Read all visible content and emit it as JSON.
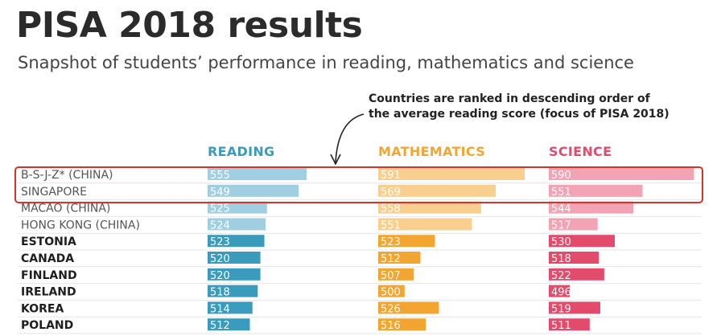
{
  "title": "PISA 2018 results",
  "subtitle": "Snapshot of students’ performance in reading, mathematics and science",
  "annotation": {
    "line1": "Countries are ranked in descending order of",
    "line2": "the average reading score (focus of PISA 2018)"
  },
  "colors": {
    "reading": "#3a9bbd",
    "reading_light": "#9fcfe0",
    "mathematics": "#f3a532",
    "mathematics_light": "#f8cf8e",
    "science": "#e24b6b",
    "science_light": "#f2a3b4",
    "highlight": "#d8322a"
  },
  "chart_data": {
    "type": "bar",
    "categories": [
      "B-S-J-Z* (CHINA)",
      "SINGAPORE",
      "MACAO (CHINA)",
      "HONG KONG (CHINA)",
      "ESTONIA",
      "CANADA",
      "FINLAND",
      "IRELAND",
      "KOREA",
      "POLAND"
    ],
    "series": [
      {
        "name": "READING",
        "values": [
          555,
          549,
          525,
          524,
          523,
          520,
          520,
          518,
          514,
          512
        ]
      },
      {
        "name": "MATHEMATICS",
        "values": [
          591,
          569,
          558,
          551,
          523,
          512,
          507,
          500,
          526,
          516
        ]
      },
      {
        "name": "SCIENCE",
        "values": [
          590,
          551,
          544,
          517,
          530,
          518,
          522,
          496,
          519,
          511
        ]
      }
    ],
    "highlighted_categories": [
      "B-S-J-Z* (CHINA)",
      "SINGAPORE"
    ],
    "partner_economies": [
      "B-S-J-Z* (CHINA)",
      "SINGAPORE",
      "MACAO (CHINA)",
      "HONG KONG (CHINA)"
    ]
  }
}
